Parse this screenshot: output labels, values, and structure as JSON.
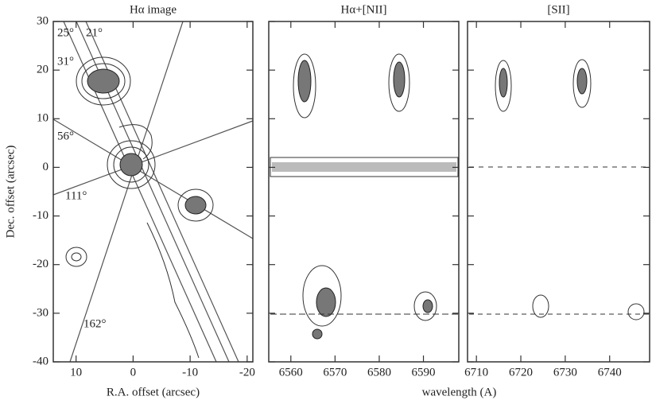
{
  "chart_data": [
    {
      "type": "contour",
      "title": "Hα image",
      "x_label": "R.A. offset (arcsec)",
      "y_label": "Dec. offset (arcsec)",
      "xlim": [
        14,
        -21
      ],
      "xticks": [
        10,
        0,
        -10,
        -20
      ],
      "ylim": [
        -40,
        30
      ],
      "yticks": [
        -40,
        -30,
        -20,
        -10,
        0,
        10,
        20,
        30
      ],
      "annotations": [
        "25°",
        "21°",
        "31°",
        "56°",
        "111°",
        "162°"
      ]
    },
    {
      "type": "contour",
      "title": "Hα+[NII]",
      "x_label": "wavelength (A)",
      "xlim": [
        6555,
        6598
      ],
      "xticks": [
        6560,
        6570,
        6580,
        6590
      ],
      "ylim": [
        -40,
        30
      ],
      "yticks": [
        -40,
        -30,
        -20,
        -10,
        0,
        10,
        20,
        30
      ]
    },
    {
      "type": "contour",
      "title": "[SII]",
      "xlim": [
        6708,
        6749
      ],
      "xticks": [
        6710,
        6720,
        6730,
        6740
      ],
      "ylim": [
        -40,
        30
      ],
      "yticks": [
        -40,
        -30,
        -20,
        -10,
        0,
        10,
        20,
        30
      ]
    }
  ]
}
